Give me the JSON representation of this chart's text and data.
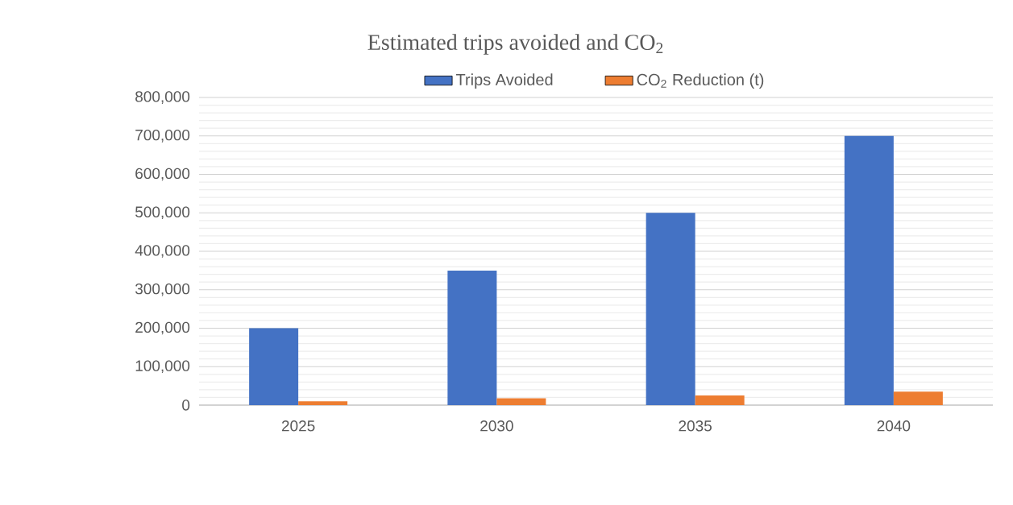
{
  "chart_data": {
    "type": "bar",
    "title": "Estimated trips avoided and CO$_{2}$",
    "categories": [
      "2025",
      "2030",
      "2035",
      "2040"
    ],
    "series": [
      {
        "name": "Trips Avoided",
        "color": "#4472c4",
        "values": [
          200000,
          350000,
          500000,
          700000
        ]
      },
      {
        "name": "CO$_{2}$ Reduction (t)",
        "color": "#ed7d31",
        "values": [
          10000,
          18000,
          25000,
          35000
        ]
      }
    ],
    "ylim": [
      0,
      800000
    ],
    "yticks": [
      0,
      {
        "value": 100000,
        "label": "100,000"
      },
      {
        "value": 200000,
        "label": "200,000"
      },
      {
        "value": 300000,
        "label": "300,000"
      },
      {
        "value": 400000,
        "label": "400,000"
      },
      {
        "value": 500000,
        "label": "500,000"
      },
      {
        "value": 600000,
        "label": "600,000"
      },
      {
        "value": 700000,
        "label": "700,000"
      },
      {
        "value": 800000,
        "label": "800,000"
      }
    ],
    "grid": "y",
    "legend": "top"
  }
}
